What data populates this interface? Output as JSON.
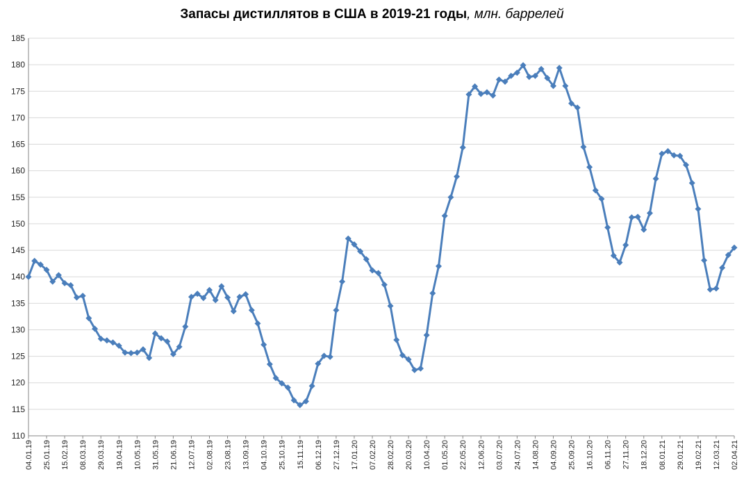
{
  "title": {
    "main": "Запасы дистиллятов в США в 2019-21 годы",
    "unit": ", млн. баррелей"
  },
  "colors": {
    "series": "#4a7ebb",
    "grid": "#d9d9d9",
    "axis": "#868686"
  },
  "chart_data": {
    "type": "line",
    "title": "Запасы дистиллятов в США в 2019-21 годы, млн. баррелей",
    "ylim": [
      110,
      185
    ],
    "yticks": [
      110,
      115,
      120,
      125,
      130,
      135,
      140,
      145,
      150,
      155,
      160,
      165,
      170,
      175,
      180,
      185
    ],
    "grid": "horizontal",
    "marker": "diamond",
    "x_tick_labels": [
      "04.01.19",
      "25.01.19",
      "15.02.19",
      "08.03.19",
      "29.03.19",
      "19.04.19",
      "10.05.19",
      "31.05.19",
      "21.06.19",
      "12.07.19",
      "02.08.19",
      "23.08.19",
      "13.09.19",
      "04.10.19",
      "25.10.19",
      "15.11.19",
      "06.12.19",
      "27.12.19",
      "17.01.20",
      "07.02.20",
      "28.02.20",
      "20.03.20",
      "10.04.20",
      "01.05.20",
      "22.05.20",
      "12.06.20",
      "03.07.20",
      "24.07.20",
      "14.08.20",
      "04.09.20",
      "25.09.20",
      "16.10.20",
      "06.11.20",
      "27.11.20",
      "18.12.20",
      "08.01.21",
      "29.01.21",
      "19.02.21",
      "12.03.21",
      "02.04.21"
    ],
    "values": [
      140.0,
      143.0,
      142.3,
      141.3,
      139.1,
      140.3,
      138.8,
      138.4,
      136.1,
      136.4,
      132.2,
      130.2,
      128.3,
      128.0,
      127.6,
      127.0,
      125.7,
      125.6,
      125.7,
      126.3,
      124.7,
      129.3,
      128.4,
      127.8,
      125.4,
      126.8,
      130.6,
      136.2,
      136.8,
      136.0,
      137.5,
      135.6,
      138.2,
      136.1,
      133.5,
      136.2,
      136.7,
      133.7,
      131.2,
      127.2,
      123.5,
      120.9,
      119.9,
      119.1,
      116.7,
      115.8,
      116.5,
      119.4,
      123.6,
      125.1,
      124.9,
      133.7,
      139.1,
      147.2,
      146.1,
      144.8,
      143.3,
      141.2,
      140.7,
      138.5,
      134.5,
      128.1,
      125.2,
      124.4,
      122.4,
      122.7,
      129.0,
      136.9,
      142.0,
      151.5,
      155.0,
      158.9,
      164.4,
      174.4,
      175.9,
      174.5,
      174.8,
      174.2,
      177.2,
      176.8,
      177.9,
      178.5,
      179.9,
      177.7,
      177.9,
      179.2,
      177.5,
      176.0,
      179.4,
      176.0,
      172.7,
      171.9,
      164.5,
      160.7,
      156.3,
      154.7,
      149.3,
      144.0,
      142.7,
      146.0,
      151.2,
      151.3,
      148.9,
      152.0,
      158.5,
      163.2,
      163.7,
      162.9,
      162.8,
      161.1,
      157.7,
      152.8,
      143.1,
      137.6,
      137.8,
      141.7,
      144.1,
      145.5
    ]
  }
}
